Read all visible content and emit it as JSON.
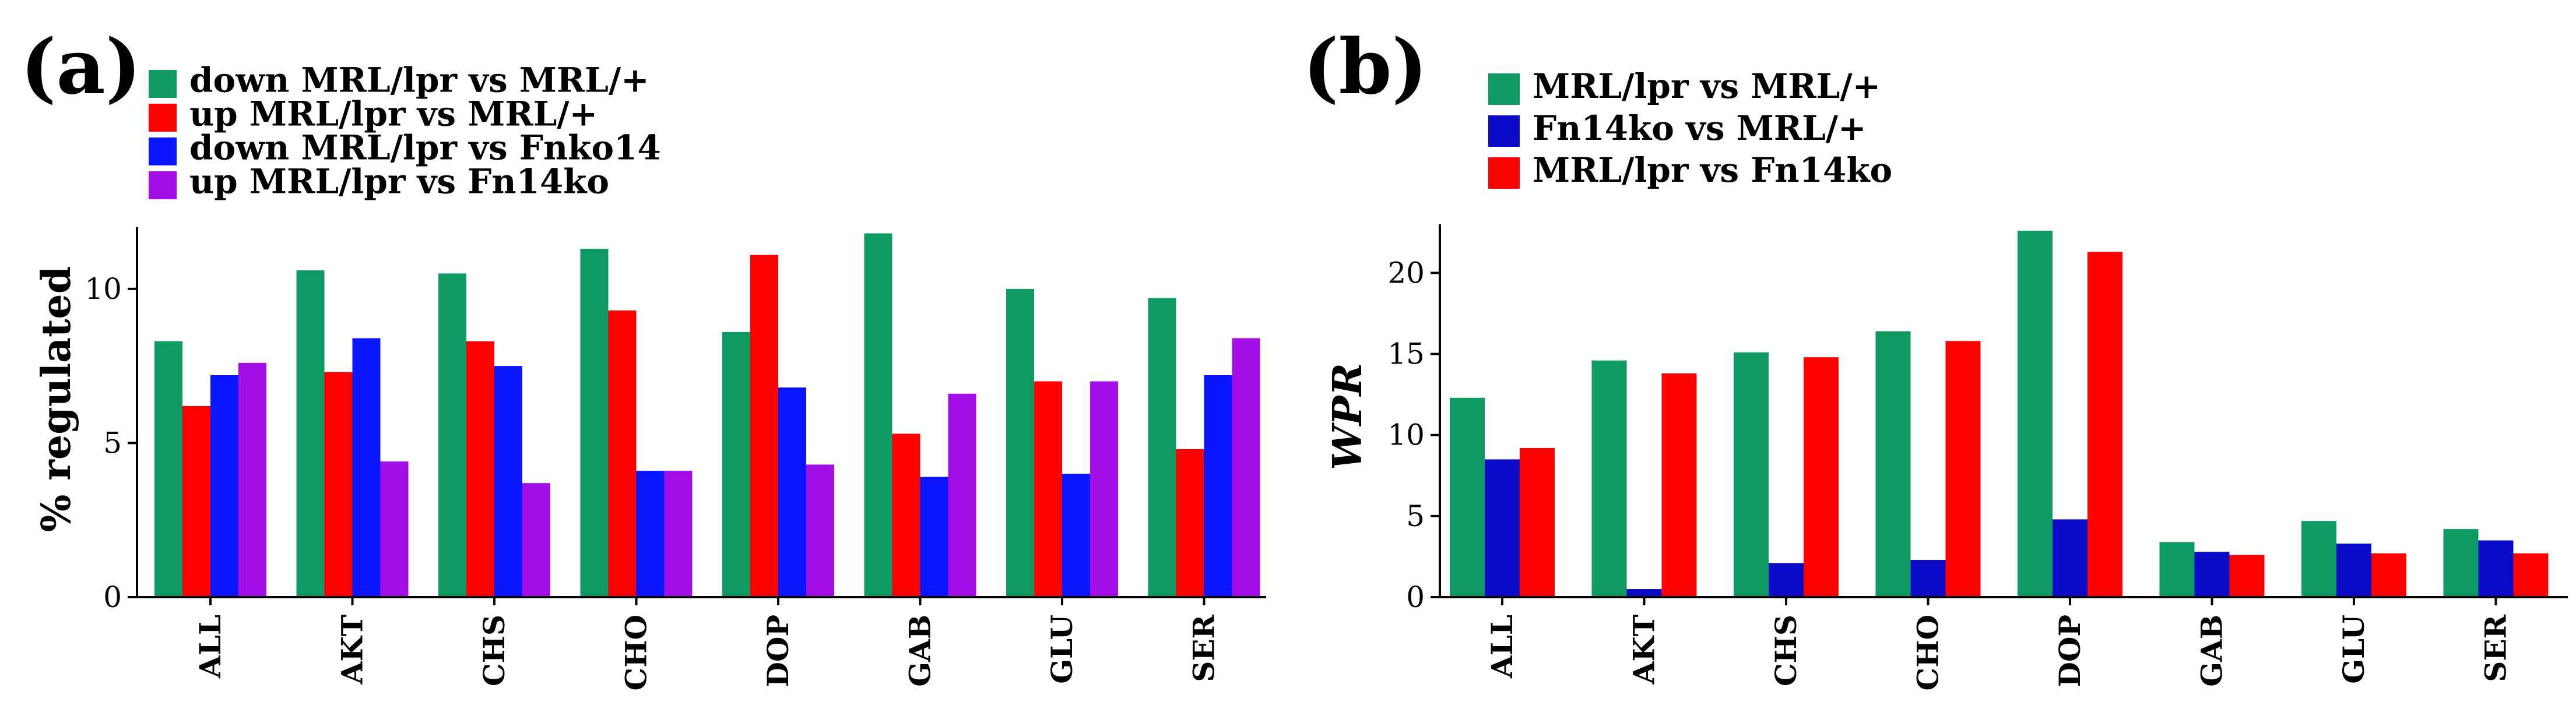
{
  "chart_data": [
    {
      "type": "bar",
      "panel_label": "(a)",
      "title": "",
      "xlabel": "",
      "ylabel": "% regulated",
      "ylim": [
        0,
        12
      ],
      "yticks": [
        "0",
        "5",
        "10"
      ],
      "categories": [
        "ALL",
        "AKT",
        "CHS",
        "CHO",
        "DOP",
        "GAB",
        "GLU",
        "SER"
      ],
      "series": [
        {
          "name": "down MRL/lpr vs MRL/+",
          "color": "#0f9a63",
          "values": [
            8.3,
            10.6,
            10.5,
            11.3,
            8.6,
            11.8,
            10.0,
            9.7
          ]
        },
        {
          "name": "up MRL/lpr vs MRL/+",
          "color": "#ff0000",
          "values": [
            6.2,
            7.3,
            8.3,
            9.3,
            11.1,
            5.3,
            7.0,
            4.8
          ]
        },
        {
          "name": "down MRL/lpr vs Fnko14",
          "color": "#0a16ff",
          "values": [
            7.2,
            8.4,
            7.5,
            4.1,
            6.8,
            3.9,
            4.0,
            7.2
          ]
        },
        {
          "name": "up MRL/lpr vs Fn14ko",
          "color": "#a40ee6",
          "values": [
            7.6,
            4.4,
            3.7,
            4.1,
            4.3,
            6.6,
            7.0,
            8.4
          ]
        }
      ],
      "legend_position": "top-left"
    },
    {
      "type": "bar",
      "panel_label": "(b)",
      "title": "",
      "xlabel": "",
      "ylabel": "WPR",
      "ylim": [
        0,
        23
      ],
      "yticks": [
        "0",
        "5",
        "10",
        "15",
        "20"
      ],
      "categories": [
        "ALL",
        "AKT",
        "CHS",
        "CHO",
        "DOP",
        "GAB",
        "GLU",
        "SER"
      ],
      "series": [
        {
          "name": "MRL/lpr vs MRL/+",
          "color": "#0f9a63",
          "values": [
            12.3,
            14.6,
            15.1,
            16.4,
            22.6,
            3.4,
            4.7,
            4.2
          ]
        },
        {
          "name": "Fn14ko vs MRL/+",
          "color": "#0a0ac8",
          "values": [
            8.5,
            0.5,
            2.1,
            2.3,
            4.8,
            2.8,
            3.3,
            3.5
          ]
        },
        {
          "name": "MRL/lpr  vs Fn14ko",
          "color": "#ff0000",
          "values": [
            9.2,
            13.8,
            14.8,
            15.8,
            21.3,
            2.6,
            2.7,
            2.7
          ]
        }
      ],
      "legend_position": "top-left"
    }
  ]
}
